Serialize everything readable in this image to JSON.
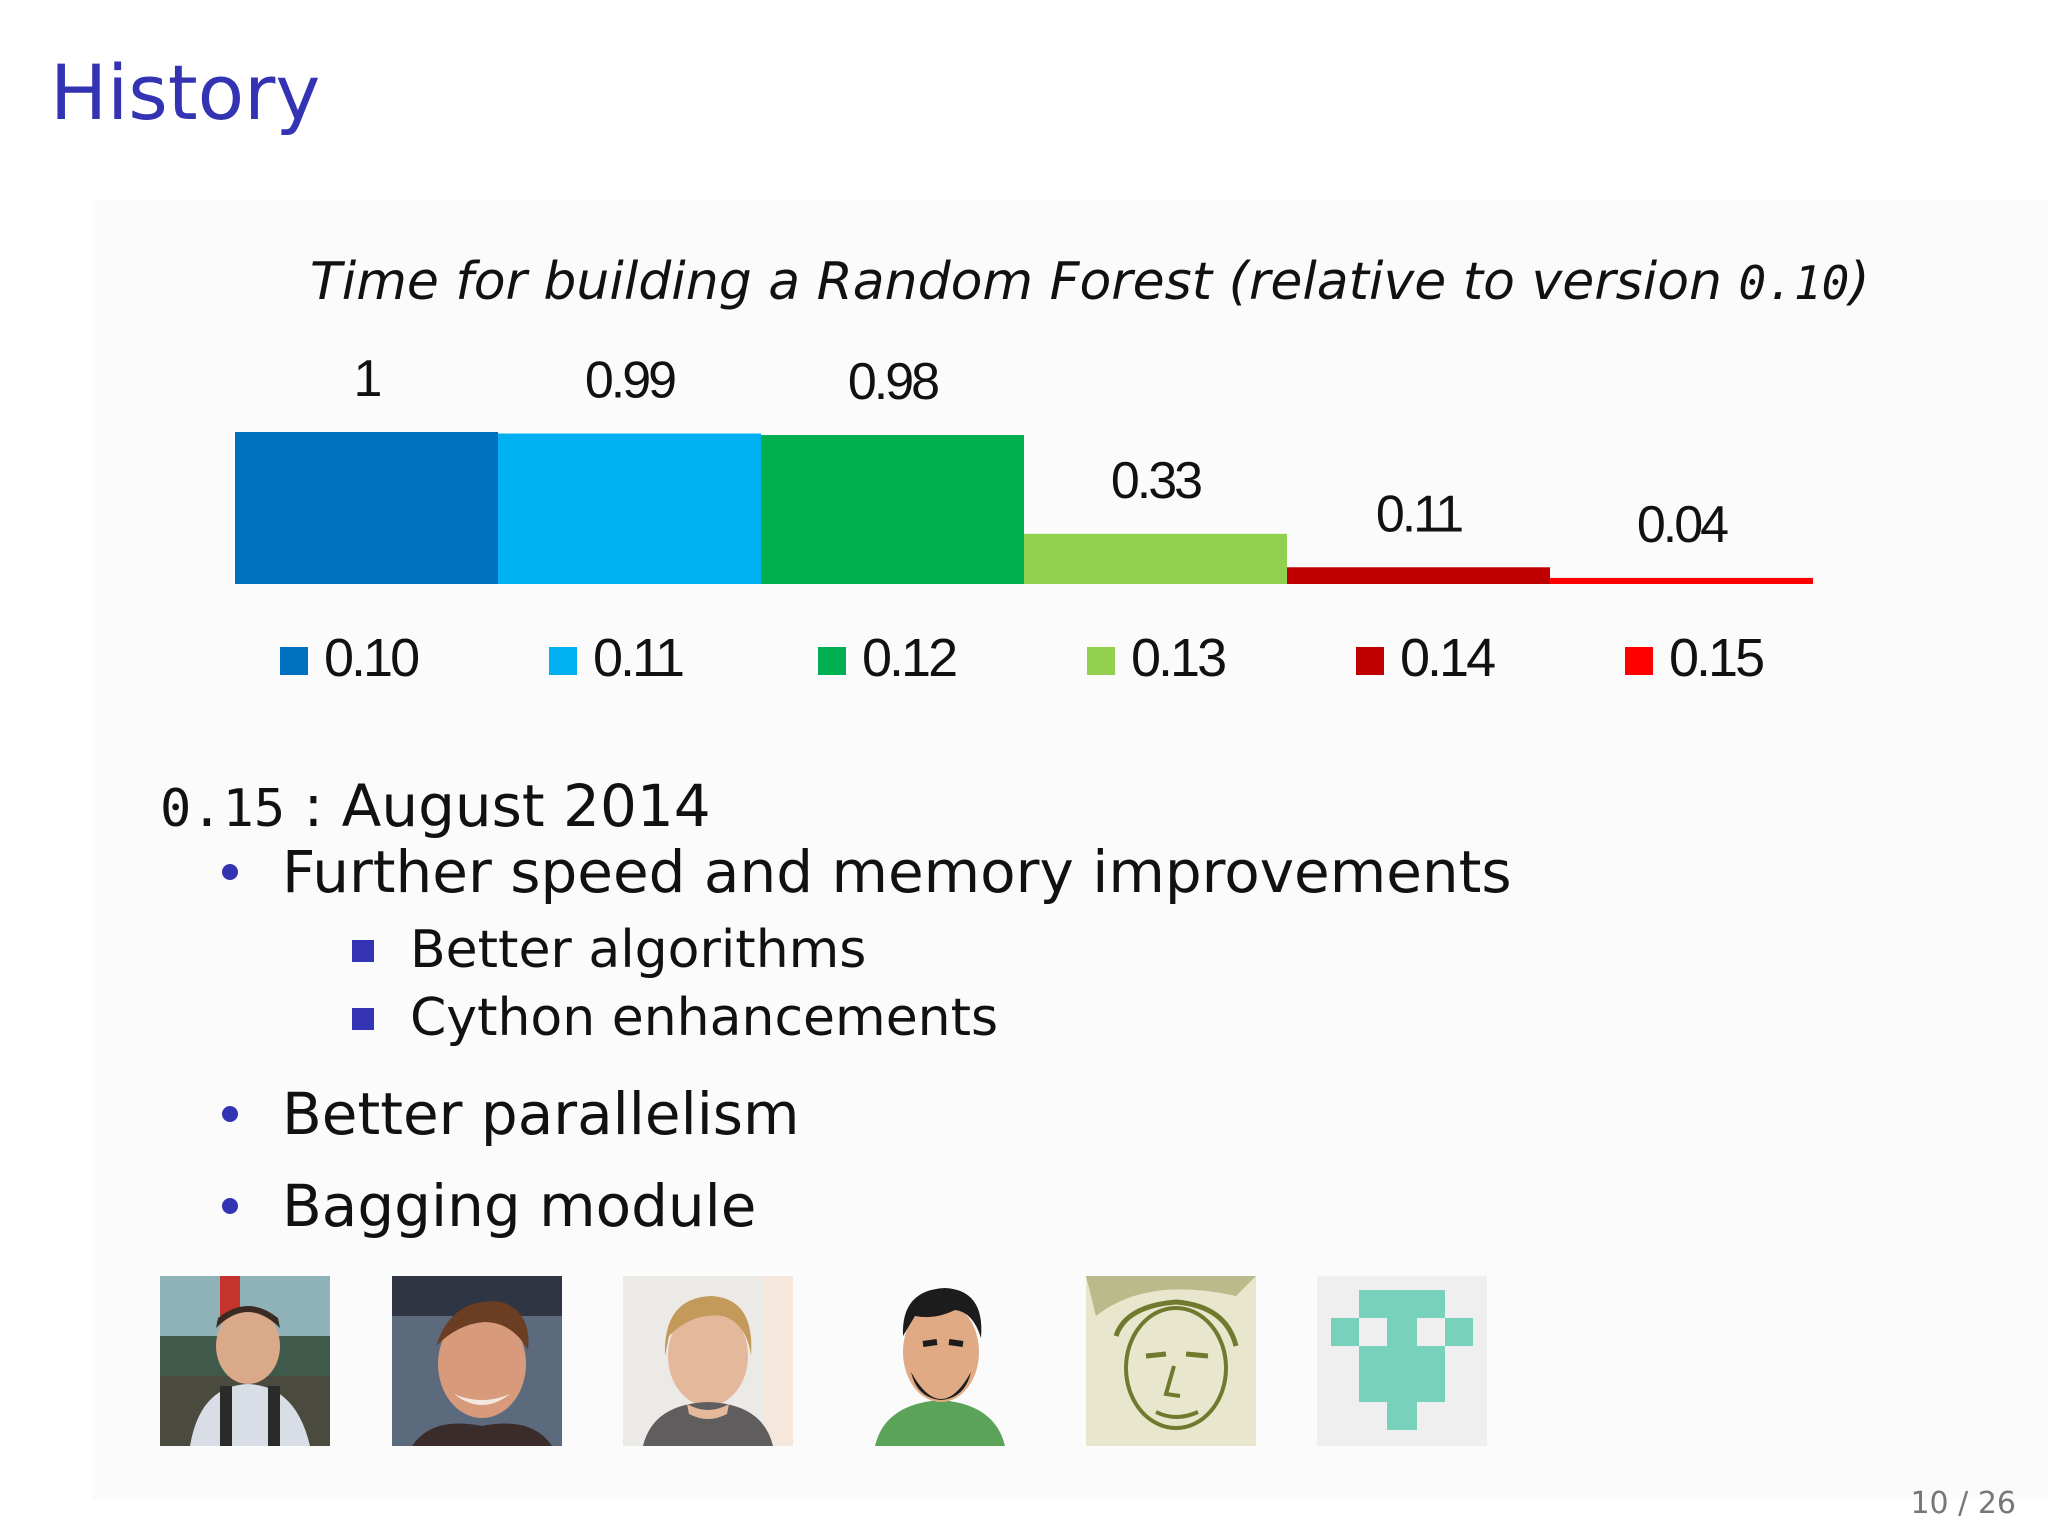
{
  "slide": {
    "title": "History",
    "page_number": "10 / 26"
  },
  "chart_data": {
    "type": "bar",
    "title_prefix": "Time for building a Random Forest (relative to version ",
    "title_code": "0.10",
    "title_suffix": ")",
    "categories": [
      "0.10",
      "0.11",
      "0.12",
      "0.13",
      "0.14",
      "0.15"
    ],
    "values": [
      1,
      0.99,
      0.98,
      0.33,
      0.11,
      0.04
    ],
    "value_labels": [
      "1",
      "0.99",
      "0.98",
      "0.33",
      "0.11",
      "0.04"
    ],
    "colors": [
      "#0070c0",
      "#00b0f0",
      "#00b050",
      "#92d050",
      "#c00000",
      "#ff0000"
    ],
    "ylim": [
      0,
      1
    ],
    "legend_position": "bottom",
    "grid": false
  },
  "body": {
    "version_code": "0.15",
    "version_text": " : August 2014",
    "bullets": [
      {
        "text": "Further speed and memory improvements",
        "sub": [
          "Better algorithms",
          "Cython enhancements"
        ]
      },
      {
        "text": "Better parallelism"
      },
      {
        "text": "Bagging module"
      }
    ]
  },
  "contributors": {
    "avatars": [
      "person-photo-1",
      "person-photo-2",
      "person-photo-3",
      "cartoon-avatar",
      "sketch-avatar",
      "identicon-avatar"
    ]
  }
}
